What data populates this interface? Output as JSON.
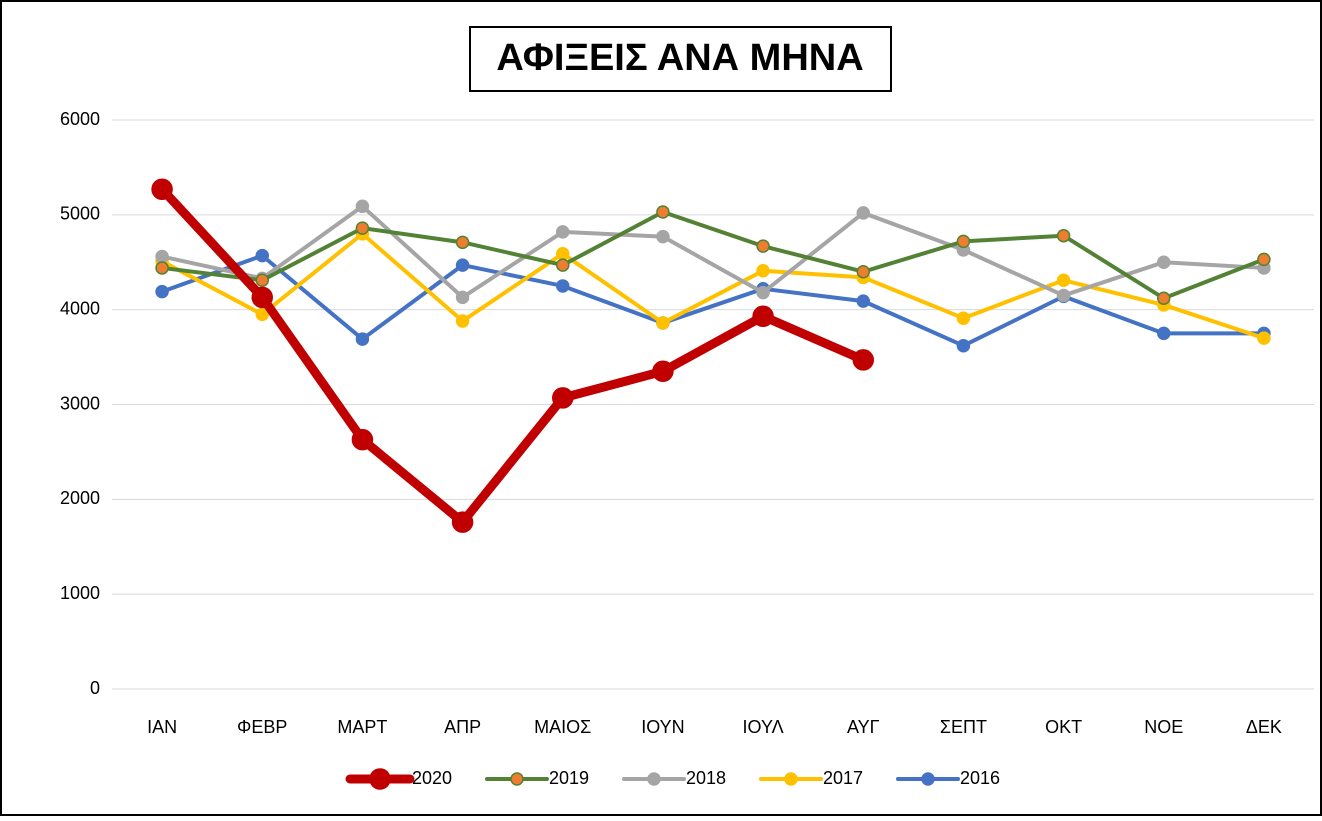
{
  "chart_data": {
    "type": "line",
    "title": "ΑΦΙΞΕΙΣ ΑΝΑ ΜΗΝΑ",
    "categories": [
      "ΙΑΝ",
      "ΦΕΒΡ",
      "ΜΑΡΤ",
      "ΑΠΡ",
      "ΜΑΙΟΣ",
      "ΙΟΥΝ",
      "ΙΟΥΛ",
      "ΑΥΓ",
      "ΣΕΠΤ",
      "ΟΚΤ",
      "ΝΟΕ",
      "ΔΕΚ"
    ],
    "series": [
      {
        "name": "2020",
        "color": "#c00000",
        "marker_color": "#c00000",
        "values": [
          5270,
          4130,
          2630,
          1760,
          3070,
          3350,
          3930,
          3470,
          null,
          null,
          null,
          null
        ]
      },
      {
        "name": "2019",
        "color": "#548235",
        "marker_color": "#ed7d31",
        "values": [
          4440,
          4310,
          4860,
          4710,
          4470,
          5030,
          4670,
          4400,
          4720,
          4780,
          4120,
          4530
        ]
      },
      {
        "name": "2018",
        "color": "#a5a5a5",
        "marker_color": "#a5a5a5",
        "values": [
          4560,
          4330,
          5090,
          4130,
          4820,
          4770,
          4180,
          5020,
          4630,
          4150,
          4500,
          4440
        ]
      },
      {
        "name": "2017",
        "color": "#ffc000",
        "marker_color": "#ffc000",
        "values": [
          4510,
          3950,
          4800,
          3880,
          4590,
          3860,
          4410,
          4340,
          3910,
          4310,
          4050,
          3700
        ]
      },
      {
        "name": "2016",
        "color": "#4472c4",
        "marker_color": "#4472c4",
        "values": [
          4190,
          4570,
          3690,
          4470,
          4250,
          3860,
          4220,
          4090,
          3620,
          4140,
          3750,
          3750
        ]
      }
    ],
    "ylim": [
      0,
      6000
    ],
    "yticks": [
      0,
      1000,
      2000,
      3000,
      4000,
      5000,
      6000
    ],
    "grid": true,
    "legend": "bottom"
  }
}
